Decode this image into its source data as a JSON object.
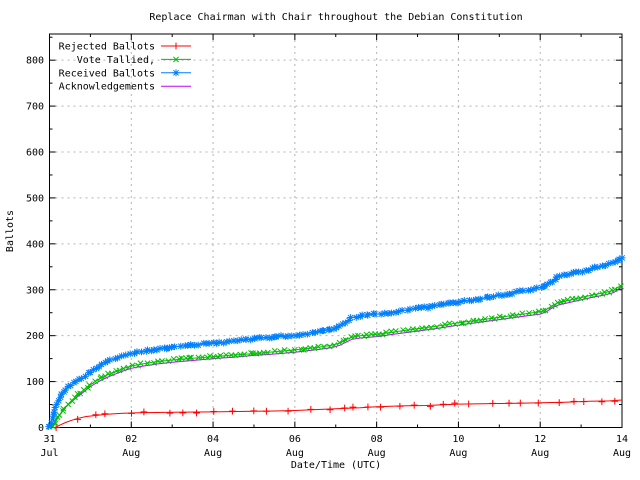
{
  "title": "Replace Chairman with Chair throughout the Debian Constitution",
  "colors": {
    "background": "#ffffff",
    "border": "#000000",
    "grid": "#b4b4b4",
    "rejected": "#ff0000",
    "tallied": "#00c000",
    "received": "#0080ff",
    "acknowledgements": "#c000ff"
  },
  "chart_data": {
    "type": "line",
    "title": "Replace Chairman with Chair throughout the Debian Constitution",
    "xlabel": "Date/Time (UTC)",
    "ylabel": "Ballots",
    "x_unit_days_from": "31 Jul 00:00 UTC",
    "xlim": [
      0,
      14
    ],
    "ylim": [
      0,
      857
    ],
    "grid": "dashed gray at major ticks, borders mirrored ticks",
    "legend_position": "top-left inside, no box",
    "x_major_ticks": [
      {
        "day": 0,
        "line1": "31",
        "line2": "Jul"
      },
      {
        "day": 2,
        "line1": "02",
        "line2": "Aug"
      },
      {
        "day": 4,
        "line1": "04",
        "line2": "Aug"
      },
      {
        "day": 6,
        "line1": "06",
        "line2": "Aug"
      },
      {
        "day": 8,
        "line1": "08",
        "line2": "Aug"
      },
      {
        "day": 10,
        "line1": "10",
        "line2": "Aug"
      },
      {
        "day": 12,
        "line1": "12",
        "line2": "Aug"
      },
      {
        "day": 14,
        "line1": "14",
        "line2": "Aug"
      }
    ],
    "x_minor_ticks": [
      1,
      3,
      5,
      7,
      9,
      11,
      13
    ],
    "y_major_ticks": [
      0,
      100,
      200,
      300,
      400,
      500,
      600,
      700,
      800
    ],
    "y_minor_ticks": [
      50,
      150,
      250,
      350,
      450,
      550,
      650,
      750,
      850
    ],
    "series": [
      {
        "name": "Rejected Ballots",
        "color": "#ff0000",
        "marker": "plus",
        "marker_spacing": 17,
        "points": [
          [
            0.15,
            0
          ],
          [
            0.25,
            5
          ],
          [
            0.4,
            11
          ],
          [
            0.55,
            16
          ],
          [
            0.7,
            20
          ],
          [
            0.9,
            24
          ],
          [
            1.1,
            26
          ],
          [
            1.4,
            29
          ],
          [
            1.8,
            31
          ],
          [
            2.2,
            32
          ],
          [
            3,
            33
          ],
          [
            4,
            34
          ],
          [
            4.8,
            35
          ],
          [
            5.5,
            36
          ],
          [
            6,
            37
          ],
          [
            6.5,
            39
          ],
          [
            7,
            41
          ],
          [
            7.6,
            43
          ],
          [
            8,
            45
          ],
          [
            8.6,
            47
          ],
          [
            9.2,
            48
          ],
          [
            10,
            51
          ],
          [
            10.8,
            52
          ],
          [
            11.5,
            53
          ],
          [
            12,
            54
          ],
          [
            12.6,
            55
          ],
          [
            13.2,
            57
          ],
          [
            13.7,
            58
          ],
          [
            14,
            60
          ]
        ]
      },
      {
        "name": "Acknowledgements",
        "color": "#c000ff",
        "marker": "none",
        "marker_spacing": 0,
        "points": [
          [
            0,
            0
          ],
          [
            0.1,
            8
          ],
          [
            0.2,
            22
          ],
          [
            0.35,
            40
          ],
          [
            0.5,
            53
          ],
          [
            0.7,
            68
          ],
          [
            0.9,
            82
          ],
          [
            1,
            89
          ],
          [
            1.2,
            100
          ],
          [
            1.4,
            109
          ],
          [
            1.6,
            116
          ],
          [
            1.8,
            123
          ],
          [
            2,
            129
          ],
          [
            2.3,
            134
          ],
          [
            2.6,
            138
          ],
          [
            3,
            142
          ],
          [
            3.5,
            146
          ],
          [
            4,
            150
          ],
          [
            4.5,
            153
          ],
          [
            5,
            157
          ],
          [
            5.5,
            160
          ],
          [
            6,
            164
          ],
          [
            6.3,
            167
          ],
          [
            6.6,
            170
          ],
          [
            6.9,
            174
          ],
          [
            7.1,
            179
          ],
          [
            7.25,
            186
          ],
          [
            7.4,
            192
          ],
          [
            7.6,
            195
          ],
          [
            8,
            198
          ],
          [
            8.5,
            204
          ],
          [
            9,
            210
          ],
          [
            9.5,
            216
          ],
          [
            10,
            223
          ],
          [
            10.5,
            229
          ],
          [
            11,
            235
          ],
          [
            11.5,
            241
          ],
          [
            12,
            247
          ],
          [
            12.15,
            252
          ],
          [
            12.3,
            261
          ],
          [
            12.45,
            267
          ],
          [
            12.7,
            272
          ],
          [
            13,
            278
          ],
          [
            13.3,
            284
          ],
          [
            13.6,
            289
          ],
          [
            13.8,
            294
          ],
          [
            14,
            306
          ]
        ]
      },
      {
        "name": "Vote Tallied,",
        "color": "#00c000",
        "marker": "cross",
        "marker_spacing": 4.5,
        "points": [
          [
            0,
            0
          ],
          [
            0.1,
            5
          ],
          [
            0.2,
            20
          ],
          [
            0.35,
            40
          ],
          [
            0.5,
            55
          ],
          [
            0.7,
            72
          ],
          [
            0.9,
            86
          ],
          [
            1,
            93
          ],
          [
            1.2,
            105
          ],
          [
            1.4,
            114
          ],
          [
            1.6,
            121
          ],
          [
            1.8,
            128
          ],
          [
            2,
            134
          ],
          [
            2.3,
            139
          ],
          [
            2.6,
            143
          ],
          [
            3,
            147
          ],
          [
            3.5,
            151
          ],
          [
            4,
            154
          ],
          [
            4.5,
            158
          ],
          [
            5,
            161
          ],
          [
            5.5,
            165
          ],
          [
            6,
            169
          ],
          [
            6.3,
            172
          ],
          [
            6.6,
            175
          ],
          [
            6.9,
            179
          ],
          [
            7.1,
            184
          ],
          [
            7.25,
            191
          ],
          [
            7.4,
            197
          ],
          [
            7.6,
            200
          ],
          [
            8,
            203
          ],
          [
            8.5,
            209
          ],
          [
            9,
            215
          ],
          [
            9.5,
            221
          ],
          [
            10,
            228
          ],
          [
            10.5,
            234
          ],
          [
            11,
            240
          ],
          [
            11.5,
            246
          ],
          [
            12,
            252
          ],
          [
            12.15,
            257
          ],
          [
            12.3,
            266
          ],
          [
            12.45,
            272
          ],
          [
            12.7,
            277
          ],
          [
            13,
            283
          ],
          [
            13.3,
            289
          ],
          [
            13.6,
            294
          ],
          [
            13.8,
            299
          ],
          [
            14,
            311
          ]
        ]
      },
      {
        "name": "Received Ballots",
        "color": "#0080ff",
        "marker": "asterisk",
        "marker_spacing": 3.4,
        "points": [
          [
            0,
            0
          ],
          [
            0.05,
            15
          ],
          [
            0.1,
            35
          ],
          [
            0.2,
            60
          ],
          [
            0.3,
            75
          ],
          [
            0.45,
            88
          ],
          [
            0.6,
            97
          ],
          [
            0.8,
            108
          ],
          [
            1,
            122
          ],
          [
            1.2,
            133
          ],
          [
            1.4,
            142
          ],
          [
            1.6,
            150
          ],
          [
            1.8,
            156
          ],
          [
            2,
            161
          ],
          [
            2.3,
            166
          ],
          [
            2.6,
            170
          ],
          [
            3,
            175
          ],
          [
            3.5,
            180
          ],
          [
            4,
            184
          ],
          [
            4.5,
            188
          ],
          [
            5,
            193
          ],
          [
            5.5,
            197
          ],
          [
            6,
            201
          ],
          [
            6.3,
            205
          ],
          [
            6.6,
            209
          ],
          [
            6.9,
            214
          ],
          [
            7.1,
            220
          ],
          [
            7.25,
            230
          ],
          [
            7.4,
            240
          ],
          [
            7.6,
            244
          ],
          [
            8,
            247
          ],
          [
            8.5,
            253
          ],
          [
            9,
            259
          ],
          [
            9.3,
            262
          ],
          [
            9.5,
            266
          ],
          [
            10,
            273
          ],
          [
            10.4,
            278
          ],
          [
            10.7,
            283
          ],
          [
            11,
            288
          ],
          [
            11.4,
            294
          ],
          [
            11.8,
            300
          ],
          [
            12,
            305
          ],
          [
            12.15,
            310
          ],
          [
            12.3,
            320
          ],
          [
            12.45,
            328
          ],
          [
            12.7,
            334
          ],
          [
            13,
            340
          ],
          [
            13.3,
            347
          ],
          [
            13.6,
            353
          ],
          [
            13.8,
            360
          ],
          [
            14,
            371
          ]
        ]
      }
    ],
    "legend_order": [
      "Rejected Ballots",
      "Vote Tallied,",
      "Received Ballots",
      "Acknowledgements"
    ]
  }
}
